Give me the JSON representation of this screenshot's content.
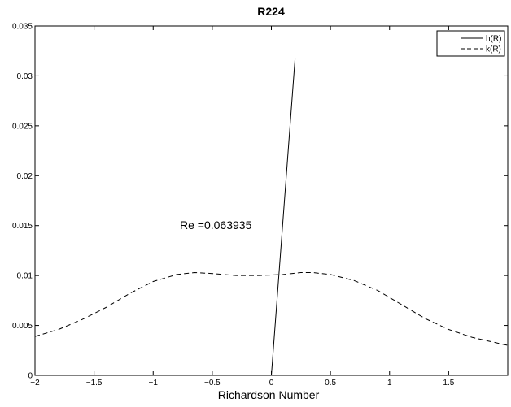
{
  "chart_data": {
    "type": "line",
    "title": "R224",
    "xlabel": "Richardson Number",
    "ylabel": "",
    "xlim": [
      -2,
      2
    ],
    "ylim": [
      0,
      0.035
    ],
    "x_ticks": [
      "-2",
      "-1.5",
      "-1",
      "-0.5",
      "0",
      "0.5",
      "1",
      "1.5"
    ],
    "y_ticks": [
      "0",
      "0.005",
      "0.01",
      "0.015",
      "0.02",
      "0.025",
      "0.03",
      "0.035"
    ],
    "grid": false,
    "legend_position": "top-right",
    "annotation": "Re =0.063935",
    "series": [
      {
        "name": "h(R)",
        "style": "solid",
        "color": "#000000",
        "points": [
          [
            0,
            0
          ],
          [
            0.2,
            0.0317
          ]
        ]
      },
      {
        "name": "k(R)",
        "style": "dashed",
        "color": "#000000",
        "points": [
          [
            -2,
            0.0039
          ],
          [
            -1.8,
            0.0046
          ],
          [
            -1.6,
            0.0056
          ],
          [
            -1.4,
            0.0068
          ],
          [
            -1.2,
            0.0082
          ],
          [
            -1.0,
            0.0094
          ],
          [
            -0.8,
            0.0101
          ],
          [
            -0.65,
            0.0103
          ],
          [
            -0.5,
            0.0102
          ],
          [
            -0.3,
            0.01
          ],
          [
            -0.1,
            0.01
          ],
          [
            0.1,
            0.0101
          ],
          [
            0.25,
            0.0103
          ],
          [
            0.35,
            0.0103
          ],
          [
            0.5,
            0.0101
          ],
          [
            0.7,
            0.0095
          ],
          [
            0.9,
            0.0085
          ],
          [
            1.1,
            0.0071
          ],
          [
            1.3,
            0.0057
          ],
          [
            1.5,
            0.0046
          ],
          [
            1.7,
            0.0038
          ],
          [
            1.85,
            0.0034
          ],
          [
            2.0,
            0.003
          ]
        ]
      }
    ]
  }
}
